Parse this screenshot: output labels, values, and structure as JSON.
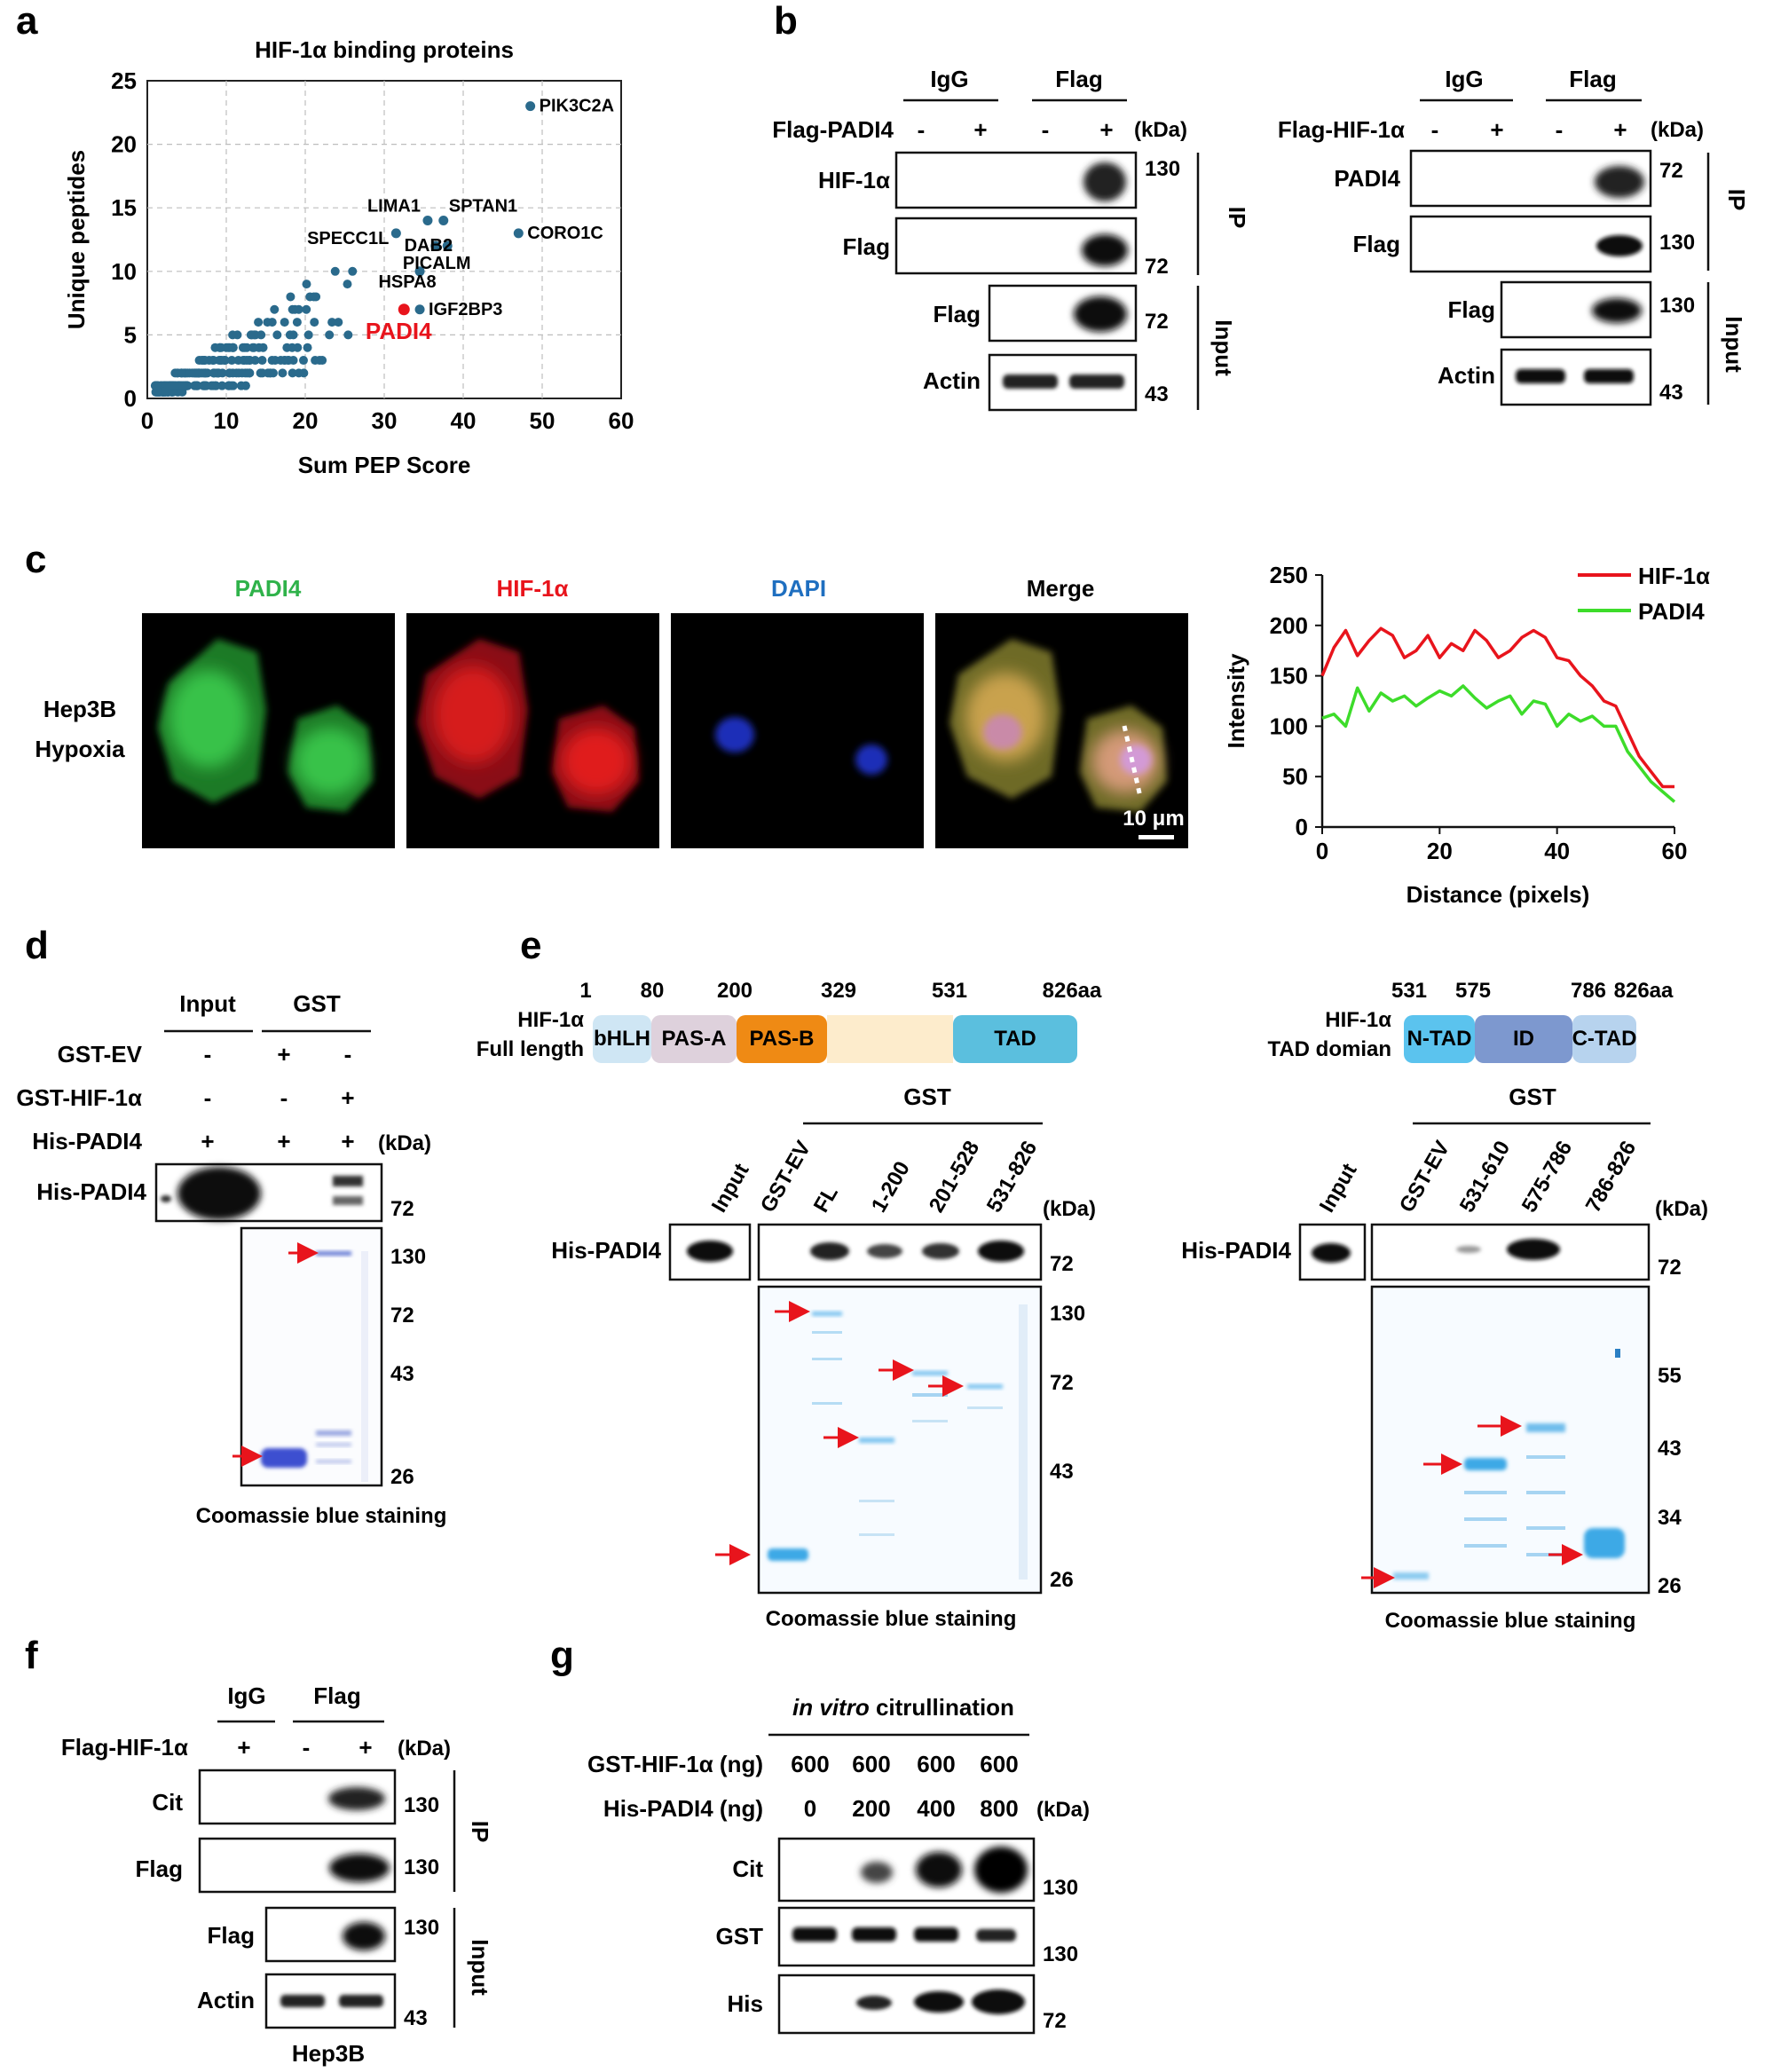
{
  "panel_labels": {
    "a": "a",
    "b": "b",
    "c": "c",
    "d": "d",
    "e": "e",
    "f": "f",
    "g": "g"
  },
  "common": {
    "kda": "(kDa)",
    "ip": "IP",
    "input": "Input",
    "igg": "IgG",
    "flag": "Flag",
    "minus": "-",
    "plus": "+",
    "coomassie": "Coomassie blue staining"
  },
  "panel_a": {
    "chart_data": {
      "type": "scatter",
      "title": "HIF-1α binding proteins",
      "xlabel": "Sum PEP Score",
      "ylabel": "Unique peptides",
      "xlim": [
        0,
        60
      ],
      "ylim": [
        0,
        25
      ],
      "xticks": [
        "0",
        "10",
        "20",
        "30",
        "40",
        "50",
        "60"
      ],
      "yticks": [
        "0",
        "5",
        "10",
        "15",
        "20",
        "25"
      ],
      "grid": true,
      "point_color": "#2a6a8c",
      "highlight_color": "#e8141c",
      "labeled_points": [
        {
          "label": "PIK3C2A",
          "x": 48.5,
          "y": 23
        },
        {
          "label": "LIMA1",
          "x": 35.5,
          "y": 14
        },
        {
          "label": "SPTAN1",
          "x": 37.5,
          "y": 14
        },
        {
          "label": "DAB2",
          "x": 36.5,
          "y": 12
        },
        {
          "label": "SPECC1L",
          "x": 31.5,
          "y": 13
        },
        {
          "label": "CORO1C",
          "x": 47,
          "y": 13
        },
        {
          "label": "PICALM",
          "x": 38,
          "y": 12
        },
        {
          "label": "HSPA8",
          "x": 34.5,
          "y": 10
        },
        {
          "label": "IGF2BP3",
          "x": 34.5,
          "y": 7
        }
      ],
      "highlight": {
        "label": "PADI4",
        "x": 32.5,
        "y": 7
      }
    }
  },
  "panel_b": {
    "left": {
      "row_label": "Flag-PADI4",
      "blots": [
        "HIF-1α",
        "Flag",
        "Flag",
        "Actin"
      ],
      "markers": [
        "130",
        "72",
        "72",
        "43"
      ]
    },
    "right": {
      "row_label": "Flag-HIF-1α",
      "blots": [
        "PADI4",
        "Flag",
        "Flag",
        "Actin"
      ],
      "markers": [
        "72",
        "130",
        "130",
        "43"
      ]
    }
  },
  "panel_c": {
    "cell_line": [
      "Hep3B",
      "Hypoxia"
    ],
    "channels": [
      {
        "name": "PADI4",
        "color": "#2fb24a"
      },
      {
        "name": "HIF-1α",
        "color": "#e8141c"
      },
      {
        "name": "DAPI",
        "color": "#1f6fc0"
      },
      {
        "name": "Merge",
        "color": "#111111"
      }
    ],
    "scale_bar": "10 μm",
    "chart_data": {
      "type": "line",
      "xlabel": "Distance (pixels)",
      "ylabel": "Intensity",
      "xlim": [
        0,
        60
      ],
      "ylim": [
        0,
        250
      ],
      "xticks": [
        "0",
        "20",
        "40",
        "60"
      ],
      "yticks": [
        "0",
        "50",
        "100",
        "150",
        "200",
        "250"
      ],
      "legend_position": "top-right",
      "series": [
        {
          "name": "HIF-1α",
          "color": "#e8141c",
          "x": [
            0,
            2,
            4,
            6,
            8,
            10,
            12,
            14,
            16,
            18,
            20,
            22,
            24,
            26,
            28,
            30,
            32,
            34,
            36,
            38,
            40,
            42,
            44,
            46,
            48,
            50,
            52,
            54,
            56,
            58,
            60
          ],
          "y": [
            150,
            178,
            195,
            170,
            185,
            197,
            190,
            168,
            175,
            190,
            168,
            182,
            175,
            195,
            185,
            168,
            175,
            188,
            195,
            188,
            168,
            165,
            150,
            140,
            125,
            120,
            95,
            70,
            55,
            40,
            40
          ]
        },
        {
          "name": "PADI4",
          "color": "#3ddc2a",
          "x": [
            0,
            2,
            4,
            6,
            8,
            10,
            12,
            14,
            16,
            18,
            20,
            22,
            24,
            26,
            28,
            30,
            32,
            34,
            36,
            38,
            40,
            42,
            44,
            46,
            48,
            50,
            52,
            54,
            56,
            58,
            60
          ],
          "y": [
            108,
            112,
            100,
            138,
            115,
            133,
            125,
            130,
            120,
            128,
            135,
            130,
            140,
            128,
            118,
            125,
            130,
            112,
            125,
            122,
            100,
            112,
            105,
            110,
            100,
            100,
            75,
            60,
            45,
            35,
            25
          ]
        }
      ]
    }
  },
  "panel_d": {
    "groups": [
      "Input",
      "GST"
    ],
    "rows": [
      {
        "label": "GST-EV",
        "signs": [
          "-",
          "+",
          "-"
        ]
      },
      {
        "label": "GST-HIF-1α",
        "signs": [
          "-",
          "-",
          "+"
        ]
      },
      {
        "label": "His-PADI4",
        "signs": [
          "+",
          "+",
          "+"
        ]
      }
    ],
    "blot": "His-PADI4",
    "markers": [
      "72",
      "130",
      "72",
      "43",
      "26"
    ]
  },
  "panel_e": {
    "domain_left": {
      "title": [
        "HIF-1α",
        "Full length"
      ],
      "positions": [
        "1",
        "80",
        "200",
        "329",
        "531",
        "826aa"
      ],
      "domains": [
        {
          "name": "bHLH",
          "color": "#cfe6f4"
        },
        {
          "name": "PAS-A",
          "color": "#ded1dc"
        },
        {
          "name": "PAS-B",
          "color": "#ef8a14"
        },
        {
          "name": "",
          "color": "#fdeccc"
        },
        {
          "name": "TAD",
          "color": "#5bbfde"
        }
      ]
    },
    "domain_right": {
      "title": [
        "HIF-1α",
        "TAD domian"
      ],
      "positions": [
        "531",
        "575",
        "786",
        "826aa"
      ],
      "domains": [
        {
          "name": "N-TAD",
          "color": "#5bc3ee"
        },
        {
          "name": "ID",
          "color": "#7d98cf"
        },
        {
          "name": "C-TAD",
          "color": "#b7d3ee"
        }
      ]
    },
    "left_blot": {
      "group": "GST",
      "lanes": [
        "Input",
        "GST-EV",
        "FL",
        "1-200",
        "201-528",
        "531-826"
      ],
      "blot": "His-PADI4",
      "markers": [
        "72",
        "130",
        "72",
        "43",
        "26"
      ]
    },
    "right_blot": {
      "group": "GST",
      "lanes": [
        "Input",
        "GST-EV",
        "531-610",
        "575-786",
        "786-826"
      ],
      "blot": "His-PADI4",
      "markers": [
        "72",
        "55",
        "43",
        "34",
        "26"
      ]
    }
  },
  "panel_f": {
    "row_label": "Flag-HIF-1α",
    "blots": [
      "Cit",
      "Flag",
      "Flag",
      "Actin"
    ],
    "markers": [
      "130",
      "130",
      "130",
      "43"
    ],
    "cell_line": "Hep3B"
  },
  "panel_g": {
    "title_italic": "in vitro",
    "title_rest": " citrullination",
    "rows": [
      {
        "label": "GST-HIF-1α (ng)",
        "values": [
          "600",
          "600",
          "600",
          "600"
        ]
      },
      {
        "label": "His-PADI4 (ng)",
        "values": [
          "0",
          "200",
          "400",
          "800"
        ]
      }
    ],
    "blots": [
      "Cit",
      "GST",
      "His"
    ],
    "markers": [
      "130",
      "130",
      "72"
    ]
  }
}
